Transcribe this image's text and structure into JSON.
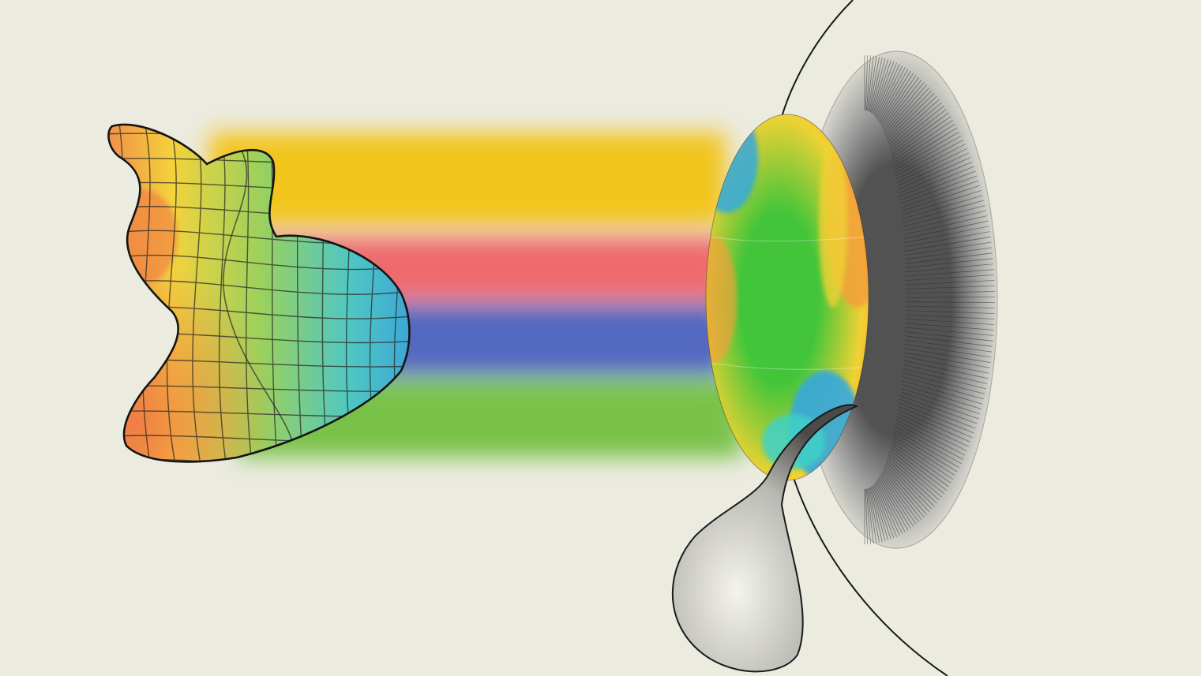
{
  "scene": {
    "background": "#ecebe0",
    "subject": "freeform-surface-to-eye-illustration",
    "icons": [
      "freeform-surface-icon",
      "eye-icon",
      "contact-lens-icon",
      "teardrop-icon"
    ]
  },
  "beams": [
    {
      "name": "yellow",
      "color": "#f2c51c"
    },
    {
      "name": "red",
      "color": "#ee6a6e"
    },
    {
      "name": "blue",
      "color": "#5268c0"
    },
    {
      "name": "green",
      "color": "#79c24a"
    }
  ],
  "surface_colors": [
    "#f08a4b",
    "#f4d23c",
    "#9bd15d",
    "#4fc7c2",
    "#3aa3d9"
  ],
  "lens_colors": [
    "#f2a23a",
    "#f0d234",
    "#42c53a",
    "#3fd0c8",
    "#35a8de"
  ],
  "ink": "#141414"
}
